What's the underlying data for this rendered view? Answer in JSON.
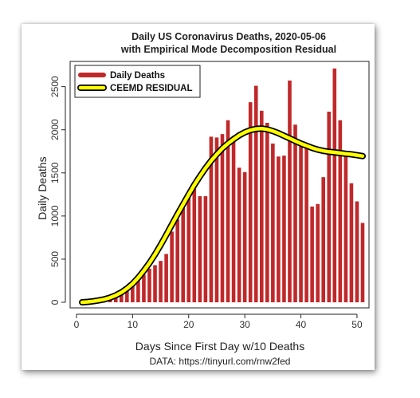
{
  "chart_data": {
    "type": "bar",
    "title_line1": "Daily US Coronavirus Deaths, 2020-05-06",
    "title_line2": "with Empirical Mode Decomposition Residual",
    "xlabel": "Days Since First Day w/10 Deaths",
    "ylabel": "Daily Deaths",
    "source": "DATA: https://tinyurl.com/rnw2fed",
    "xlim": [
      1,
      51
    ],
    "ylim": [
      0,
      2700
    ],
    "x_ticks": [
      0,
      10,
      20,
      30,
      40,
      50
    ],
    "y_ticks": [
      0,
      500,
      1000,
      1500,
      2000,
      2500
    ],
    "legend_position": "top-left",
    "series": [
      {
        "name": "Daily Deaths",
        "kind": "bar",
        "color": "#c0282a",
        "x": [
          1,
          2,
          3,
          4,
          5,
          6,
          7,
          8,
          9,
          10,
          11,
          12,
          13,
          14,
          15,
          16,
          17,
          18,
          19,
          20,
          21,
          22,
          23,
          24,
          25,
          26,
          27,
          28,
          29,
          30,
          31,
          32,
          33,
          34,
          35,
          36,
          37,
          38,
          39,
          40,
          41,
          42,
          43,
          44,
          45,
          46,
          47,
          48,
          49,
          50,
          51
        ],
        "values": [
          10,
          20,
          25,
          30,
          40,
          50,
          80,
          140,
          180,
          240,
          280,
          320,
          390,
          430,
          480,
          560,
          820,
          960,
          1120,
          1220,
          1390,
          1230,
          1230,
          1920,
          1910,
          1950,
          2110,
          1930,
          1560,
          1510,
          2320,
          2510,
          2220,
          2080,
          1840,
          1690,
          1700,
          2570,
          2060,
          1850,
          1830,
          1110,
          1140,
          1450,
          2210,
          2710,
          2110,
          1720,
          1380,
          1170,
          920
        ]
      },
      {
        "name": "CEEMD RESIDUAL",
        "kind": "line",
        "color": "#ffff00",
        "outline_color": "#000000",
        "x": [
          1,
          2,
          3,
          4,
          5,
          6,
          7,
          8,
          9,
          10,
          11,
          12,
          13,
          14,
          15,
          16,
          17,
          18,
          19,
          20,
          21,
          22,
          23,
          24,
          25,
          26,
          27,
          28,
          29,
          30,
          31,
          32,
          33,
          34,
          35,
          36,
          37,
          38,
          39,
          40,
          41,
          42,
          43,
          44,
          45,
          46,
          47,
          48,
          49,
          50,
          51
        ],
        "values": [
          0,
          5,
          12,
          22,
          35,
          55,
          80,
          115,
          160,
          215,
          285,
          365,
          455,
          555,
          665,
          780,
          900,
          1020,
          1135,
          1250,
          1360,
          1460,
          1555,
          1640,
          1715,
          1785,
          1840,
          1890,
          1935,
          1970,
          1995,
          2010,
          2015,
          2005,
          1985,
          1960,
          1930,
          1900,
          1870,
          1840,
          1815,
          1790,
          1770,
          1755,
          1745,
          1738,
          1730,
          1722,
          1715,
          1705,
          1695
        ]
      }
    ]
  },
  "colors": {
    "bar": "#c0282a",
    "residual_fill": "#ffff00",
    "residual_outline": "#000000"
  }
}
